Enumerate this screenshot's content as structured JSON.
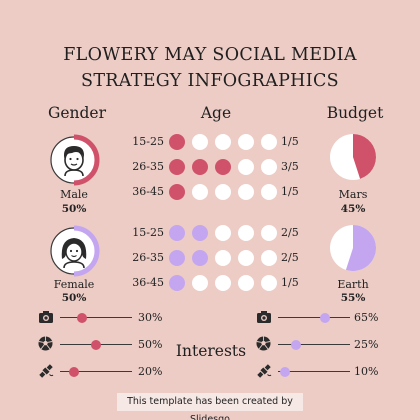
{
  "title": {
    "line1": "FLOWERY MAY SOCIAL MEDIA",
    "line2": "STRATEGY INFOGRAPHICS"
  },
  "headers": {
    "gender": "Gender",
    "age": "Age",
    "budget": "Budget",
    "interests": "Interests"
  },
  "colors": {
    "pink": "#d0526a",
    "purple": "#c4a6f0",
    "background": "#ecccc5",
    "white": "#ffffff"
  },
  "gender": [
    {
      "label": "Male",
      "percent": "50%",
      "value": 50,
      "icon": "male-avatar-icon",
      "color": "#d0526a"
    },
    {
      "label": "Female",
      "percent": "50%",
      "value": 50,
      "icon": "female-avatar-icon",
      "color": "#c4a6f0"
    }
  ],
  "age": {
    "male": [
      {
        "range": "15-25",
        "filled": 1,
        "total": 5,
        "fraction": "1/5"
      },
      {
        "range": "26-35",
        "filled": 3,
        "total": 5,
        "fraction": "3/5"
      },
      {
        "range": "36-45",
        "filled": 1,
        "total": 5,
        "fraction": "1/5"
      }
    ],
    "female": [
      {
        "range": "15-25",
        "filled": 2,
        "total": 5,
        "fraction": "2/5"
      },
      {
        "range": "26-35",
        "filled": 2,
        "total": 5,
        "fraction": "2/5"
      },
      {
        "range": "36-45",
        "filled": 1,
        "total": 5,
        "fraction": "1/5"
      }
    ]
  },
  "budget": [
    {
      "label": "Mars",
      "percent": "45%",
      "value": 45,
      "color": "#d0526a"
    },
    {
      "label": "Earth",
      "percent": "55%",
      "value": 55,
      "color": "#c4a6f0"
    }
  ],
  "interests": {
    "male": [
      {
        "icon": "camera-icon",
        "percent": "30%",
        "value": 30
      },
      {
        "icon": "soccer-ball-icon",
        "percent": "50%",
        "value": 50
      },
      {
        "icon": "satellite-icon",
        "percent": "20%",
        "value": 20
      }
    ],
    "female": [
      {
        "icon": "camera-icon",
        "percent": "65%",
        "value": 65
      },
      {
        "icon": "soccer-ball-icon",
        "percent": "25%",
        "value": 25
      },
      {
        "icon": "satellite-icon",
        "percent": "10%",
        "value": 10
      }
    ]
  },
  "footer": {
    "text": "This template has been created by Slidesgo"
  }
}
